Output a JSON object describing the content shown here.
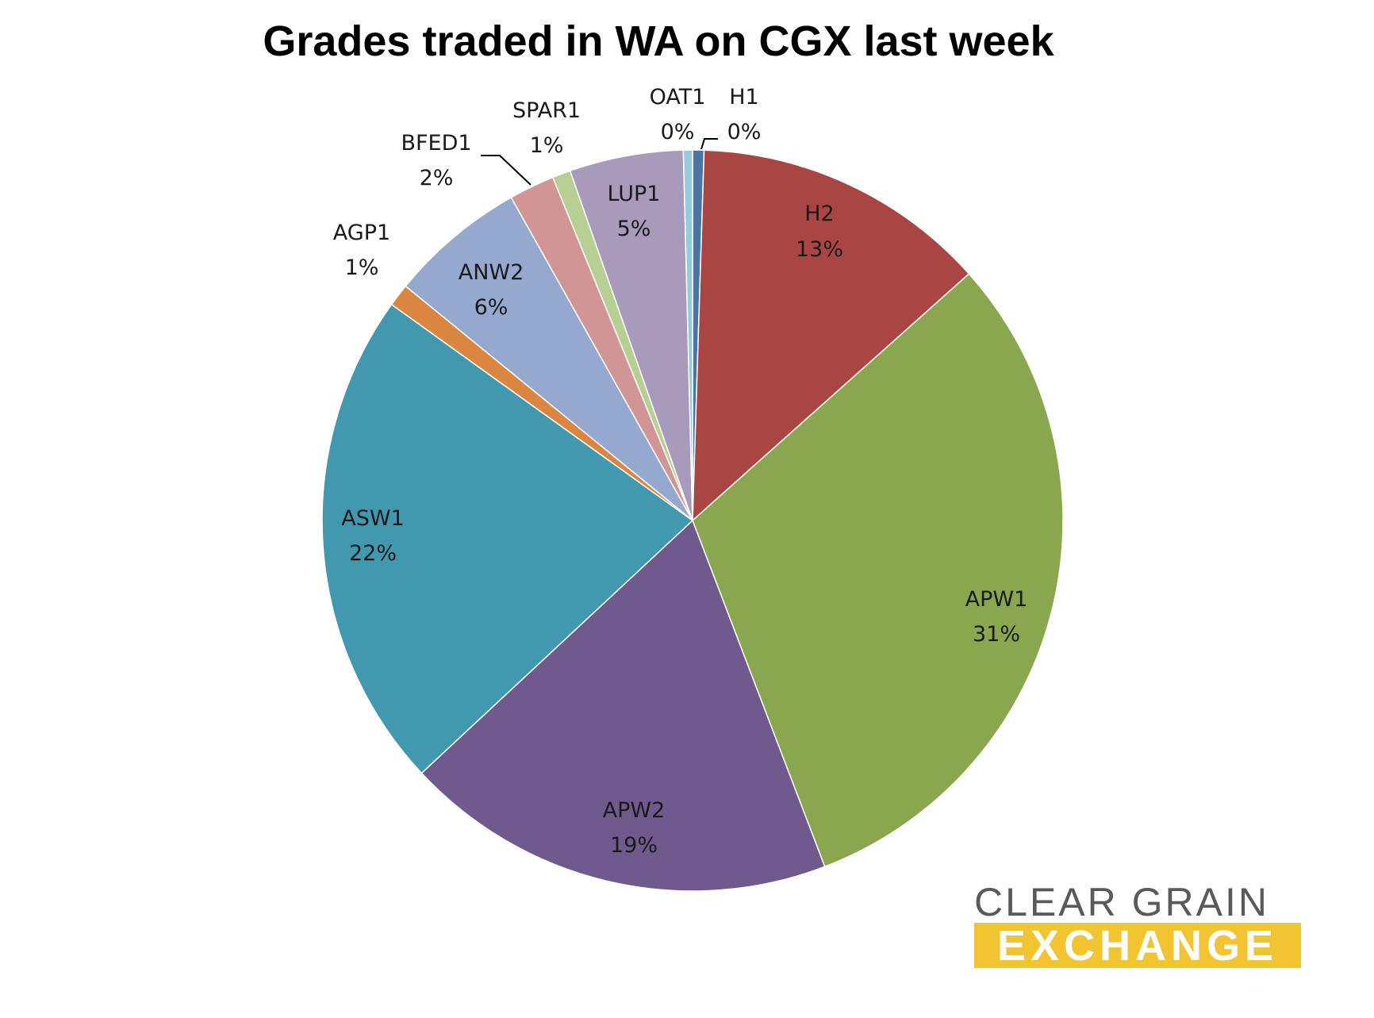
{
  "chart_data": {
    "type": "pie",
    "title": "Grades traded in WA on CGX last week",
    "slices": [
      {
        "label": "H1",
        "percent_label": "0%",
        "value": 0.5,
        "color": "#4a74a8"
      },
      {
        "label": "H2",
        "percent_label": "13%",
        "value": 13,
        "color": "#a94644"
      },
      {
        "label": "APW1",
        "percent_label": "31%",
        "value": 31,
        "color": "#8aa64e"
      },
      {
        "label": "APW2",
        "percent_label": "19%",
        "value": 19,
        "color": "#6f598d"
      },
      {
        "label": "ASW1",
        "percent_label": "22%",
        "value": 22,
        "color": "#4298ae"
      },
      {
        "label": "AGP1",
        "percent_label": "1%",
        "value": 1,
        "color": "#db8640"
      },
      {
        "label": "ANW2",
        "percent_label": "6%",
        "value": 6,
        "color": "#95a9cf"
      },
      {
        "label": "BFED1",
        "percent_label": "2%",
        "value": 2,
        "color": "#d09594"
      },
      {
        "label": "SPAR1",
        "percent_label": "1%",
        "value": 0.8,
        "color": "#b8cf93"
      },
      {
        "label": "LUP1",
        "percent_label": "5%",
        "value": 5,
        "color": "#a89abb"
      },
      {
        "label": "OAT1",
        "percent_label": "0%",
        "value": 0.4,
        "color": "#93cddd"
      }
    ]
  },
  "logo": {
    "line1": "CLEAR GRAIN",
    "line2": "EXCHANGE",
    "line1_color": "#5a5a5a",
    "line2_color": "#ffffff",
    "bar_color": "#f3c432"
  }
}
